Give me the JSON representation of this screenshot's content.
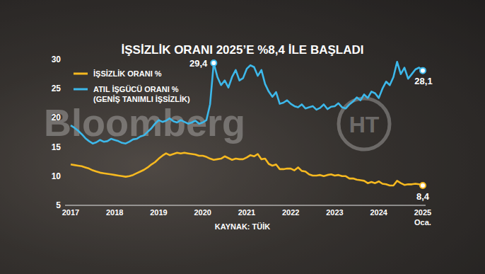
{
  "chart_data": {
    "type": "line",
    "title": "İŞSİZLİK ORANI 2025’E %8,4 İLE BAŞLADI",
    "source": "KAYNAK: TÜİK",
    "watermark": "Bloomberg",
    "logo": "HT",
    "legend": "top-left",
    "grid": false,
    "categories": [
      "2017",
      null,
      null,
      null,
      null,
      null,
      null,
      null,
      null,
      null,
      null,
      null,
      "2018",
      null,
      null,
      null,
      null,
      null,
      null,
      null,
      null,
      null,
      null,
      null,
      "2019",
      null,
      null,
      null,
      null,
      null,
      null,
      null,
      null,
      null,
      null,
      null,
      "2020",
      null,
      null,
      null,
      null,
      null,
      null,
      null,
      null,
      null,
      null,
      null,
      "2021",
      null,
      null,
      null,
      null,
      null,
      null,
      null,
      null,
      null,
      null,
      null,
      "2022",
      null,
      null,
      null,
      null,
      null,
      null,
      null,
      null,
      null,
      null,
      null,
      "2023",
      null,
      null,
      null,
      null,
      null,
      null,
      null,
      null,
      null,
      null,
      null,
      "2024",
      null,
      null,
      null,
      null,
      null,
      null,
      null,
      null,
      null,
      null,
      null,
      "2025 Oca."
    ],
    "ylim": [
      5,
      30
    ],
    "yticks": [
      5,
      10,
      15,
      20,
      25,
      30
    ],
    "series": [
      {
        "name": "İŞSİZLİK ORANI %",
        "color": "#f6b920",
        "values": [
          12.0,
          11.9,
          11.8,
          11.7,
          11.5,
          11.3,
          11.0,
          10.8,
          10.6,
          10.5,
          10.4,
          10.3,
          10.2,
          10.1,
          10.0,
          9.9,
          10.0,
          10.2,
          10.5,
          10.8,
          11.1,
          11.5,
          12.0,
          12.4,
          13.0,
          13.5,
          13.9,
          13.6,
          13.8,
          14.0,
          13.9,
          14.0,
          13.9,
          13.8,
          13.7,
          13.5,
          13.5,
          13.3,
          13.0,
          12.8,
          12.9,
          13.0,
          13.4,
          13.1,
          12.8,
          13.0,
          12.9,
          12.9,
          13.2,
          13.6,
          13.4,
          13.8,
          12.9,
          13.0,
          12.1,
          11.8,
          12.0,
          11.2,
          11.2,
          11.3,
          11.3,
          11.0,
          11.5,
          10.9,
          10.8,
          10.3,
          10.1,
          10.1,
          10.2,
          10.0,
          10.2,
          10.3,
          10.1,
          10.2,
          10.0,
          10.0,
          9.6,
          9.6,
          9.4,
          9.3,
          9.2,
          8.8,
          9.0,
          8.8,
          9.1,
          8.7,
          8.6,
          8.4,
          8.4,
          9.2,
          8.8,
          8.5,
          8.6,
          8.6,
          8.7,
          8.6,
          8.4
        ]
      },
      {
        "name": "ATIL İŞGÜCÜ ORANI %\n(GENİŞ TANIMLI İŞSİZLİK)",
        "color": "#3db8ea",
        "values": [
          18.7,
          18.3,
          17.8,
          17.2,
          16.5,
          16.0,
          15.6,
          15.8,
          16.2,
          15.9,
          16.0,
          16.4,
          16.2,
          16.0,
          15.7,
          15.6,
          15.9,
          16.3,
          16.4,
          16.8,
          17.0,
          17.6,
          18.2,
          19.0,
          19.6,
          19.3,
          19.5,
          19.9,
          19.4,
          19.2,
          19.6,
          19.3,
          19.0,
          19.2,
          19.5,
          19.0,
          19.2,
          19.6,
          22.3,
          29.4,
          27.0,
          25.6,
          26.4,
          25.2,
          27.0,
          28.2,
          26.4,
          26.8,
          28.4,
          29.0,
          28.7,
          27.2,
          28.2,
          25.8,
          24.5,
          23.6,
          24.4,
          22.4,
          22.6,
          23.0,
          22.4,
          22.0,
          21.8,
          22.3,
          21.6,
          21.8,
          22.0,
          21.4,
          21.7,
          22.3,
          21.5,
          21.9,
          22.0,
          22.5,
          21.8,
          21.6,
          22.3,
          22.8,
          23.5,
          23.0,
          24.0,
          23.4,
          24.5,
          24.2,
          23.4,
          25.0,
          26.2,
          25.6,
          27.0,
          29.6,
          27.5,
          28.6,
          26.7,
          27.5,
          28.3,
          28.6,
          28.1
        ]
      }
    ],
    "annotations": [
      {
        "text": "29,4",
        "series": 1,
        "index": 39
      },
      {
        "text": "28,1",
        "series": 1,
        "index": 96
      },
      {
        "text": "8,4",
        "series": 0,
        "index": 96
      }
    ]
  }
}
